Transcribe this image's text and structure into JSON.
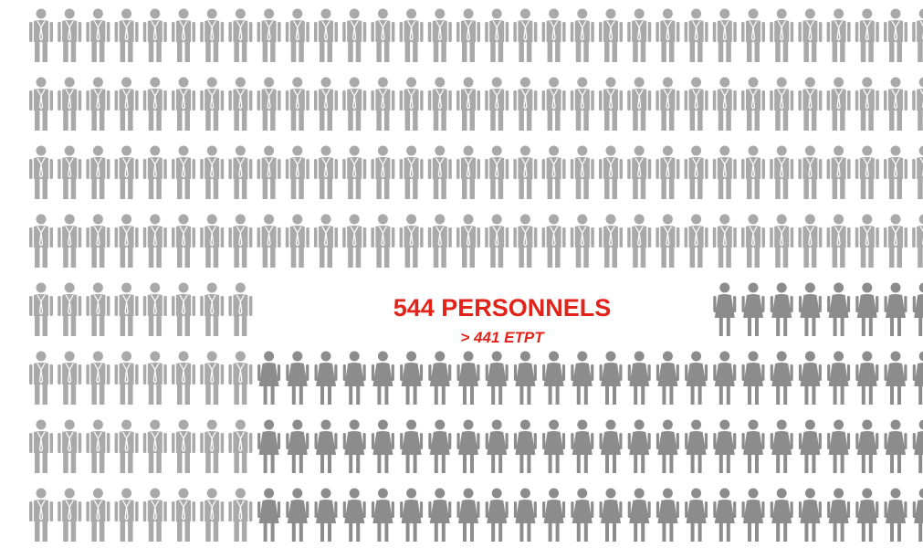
{
  "headline": "544 PERSONNELS",
  "subline": "> 441 ETPT"
}
